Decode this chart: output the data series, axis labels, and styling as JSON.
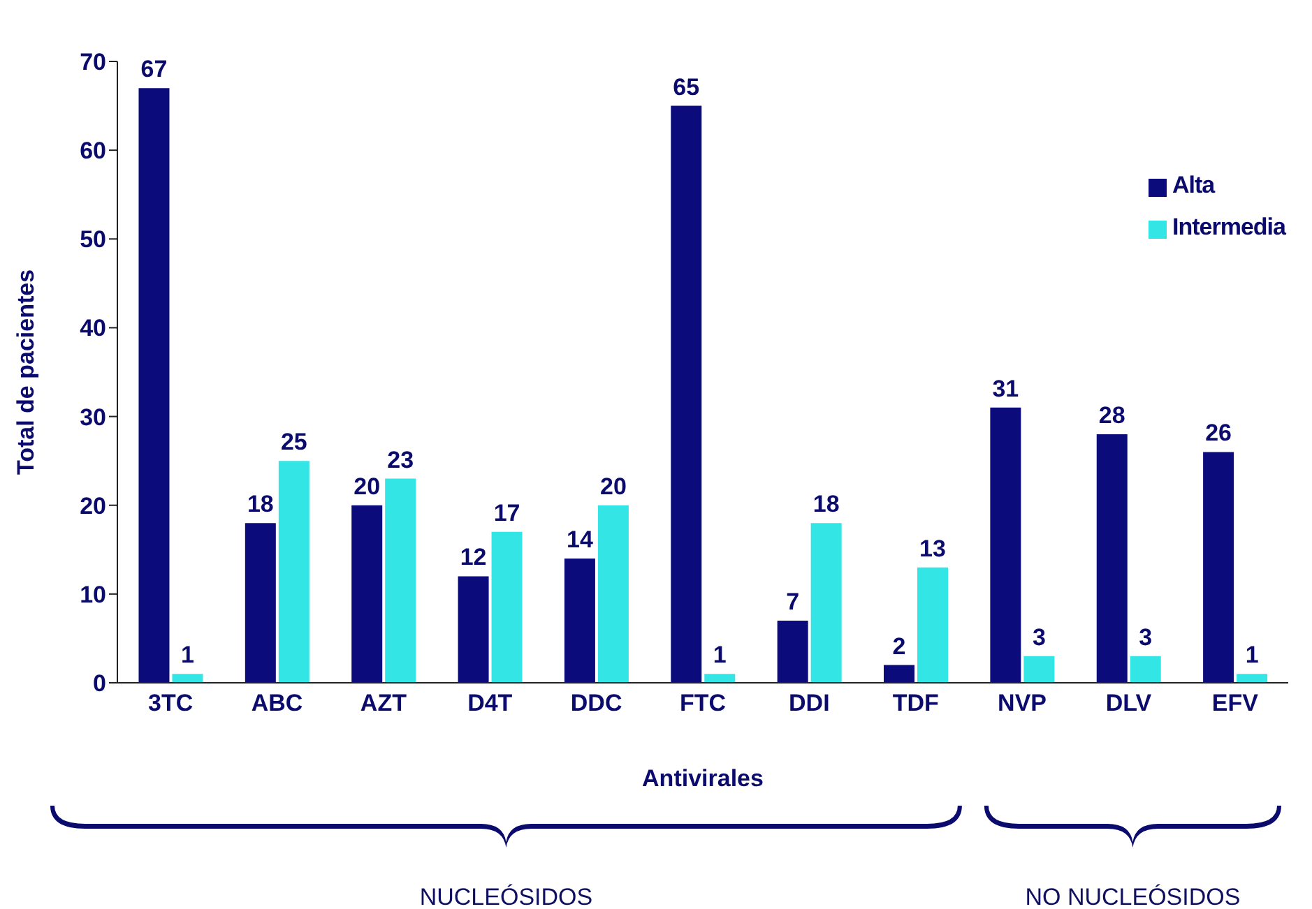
{
  "chart_data": {
    "type": "bar",
    "xlabel": "Antivirales",
    "ylabel": "Total de pacientes",
    "categories": [
      "3TC",
      "ABC",
      "AZT",
      "D4T",
      "DDC",
      "FTC",
      "DDI",
      "TDF",
      "NVP",
      "DLV",
      "EFV"
    ],
    "series": [
      {
        "name": "Alta",
        "color": "#0b0b7c",
        "values": [
          67,
          18,
          20,
          12,
          14,
          65,
          7,
          2,
          31,
          28,
          26
        ]
      },
      {
        "name": "Intermedia",
        "color": "#33e5e5",
        "values": [
          1,
          25,
          23,
          17,
          20,
          1,
          18,
          13,
          3,
          3,
          1
        ]
      }
    ],
    "ylim": [
      0,
      70
    ],
    "yticks": [
      0,
      10,
      20,
      30,
      40,
      50,
      60,
      70
    ],
    "data_labels": true,
    "legend": "top right",
    "annotations": [
      "NUCLEÓSIDOS",
      "NO NUCLEÓSIDOS"
    ]
  }
}
